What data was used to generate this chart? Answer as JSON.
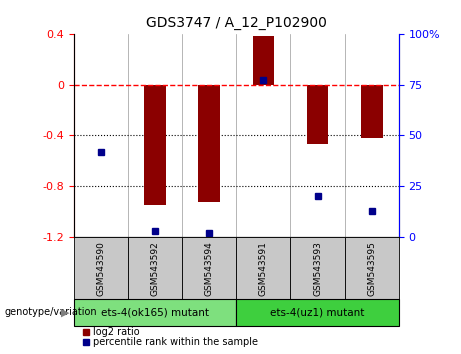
{
  "title": "GDS3747 / A_12_P102900",
  "samples": [
    "GSM543590",
    "GSM543592",
    "GSM543594",
    "GSM543591",
    "GSM543593",
    "GSM543595"
  ],
  "log2_ratio": [
    0.0,
    -0.95,
    -0.92,
    0.38,
    -0.47,
    -0.42
  ],
  "percentile_rank": [
    42,
    3,
    2,
    77,
    20,
    13
  ],
  "groups": [
    {
      "label": "ets-4(ok165) mutant",
      "indices": [
        0,
        1,
        2
      ],
      "color": "#7EE07E"
    },
    {
      "label": "ets-4(uz1) mutant",
      "indices": [
        3,
        4,
        5
      ],
      "color": "#3ECF3E"
    }
  ],
  "ylim_left": [
    -1.2,
    0.4
  ],
  "ylim_right": [
    0,
    100
  ],
  "hline_y": 0,
  "dotted_lines": [
    -0.4,
    -0.8
  ],
  "bar_color": "#8B0000",
  "dot_color": "#00008B",
  "bar_width": 0.4,
  "background_color": "#ffffff",
  "sample_cell_color": "#C8C8C8",
  "legend_items": [
    "log2 ratio",
    "percentile rank within the sample"
  ],
  "left_yticks": [
    0.4,
    0.0,
    -0.4,
    -0.8,
    -1.2
  ],
  "left_yticklabels": [
    "0.4",
    "0",
    "-0.4",
    "-0.8",
    "-1.2"
  ],
  "right_yticks": [
    0,
    25,
    50,
    75,
    100
  ],
  "right_yticklabels": [
    "0",
    "25",
    "50",
    "75",
    "100%"
  ]
}
